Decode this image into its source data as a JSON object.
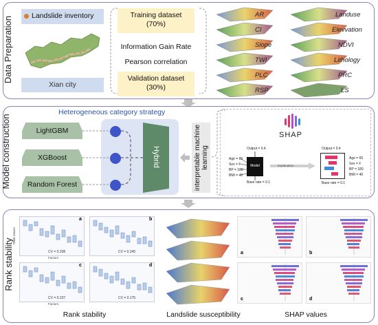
{
  "data_preparation": {
    "section_label": "Data Preparation",
    "landslide_inventory": "Landslide inventory",
    "city": "Xian city",
    "training": "Training dataset\n(70%)",
    "igr": "Information Gain Rate",
    "pearson": "Pearson correlation",
    "validation": "Validation dataset\n(30%)",
    "layers_left": [
      "AR",
      "CI",
      "Slope",
      "TWI",
      "PLC",
      "RSP"
    ],
    "layers_right": [
      "Landuse",
      "Elevvation",
      "NDVI",
      "Lithology",
      "PRC",
      "LS"
    ]
  },
  "model_construction": {
    "section_label": "Model construction",
    "strategy": "Heterogeneous category strategy",
    "models": [
      "LightGBM",
      "XGBoost",
      "Random Forest"
    ],
    "hybrid": "Hybrid",
    "iml": "interpretable machine\nlearning",
    "shap_logo": "SHAP",
    "explain_left": {
      "output": "Output = 0.4",
      "age": "Age = 65",
      "sex": "Sex = F",
      "bp": "BP = 180",
      "bmi": "BMI = 40",
      "model": "Model",
      "base": "Base rate = 0.1"
    },
    "explanation_arrow": "Explanation",
    "explain_right": {
      "output": "Output = 0.4",
      "age": "Age = 65",
      "sex": "Sex = F",
      "bp": "BP = 180",
      "bmi": "BMI = 40",
      "base": "Base rate = 0.1"
    }
  },
  "rank_stability": {
    "section_label": "Rank stability",
    "caption_rank": "Rank stability",
    "caption_landslide": "Landslide susceptibility",
    "caption_shap": "SHAP values",
    "panel_letters": [
      "a",
      "b",
      "c",
      "d"
    ],
    "cv_values": [
      "CV = 0.208",
      "CV = 0.240",
      "CV = 0.237",
      "CV = 0.175"
    ],
    "axis_x": "Factors",
    "axis_y": "Rank values"
  },
  "colors": {
    "panel_border": "#8b7fb8",
    "yellow": "#fdf1c7",
    "model_green": "#a9c2a7",
    "hybrid_green": "#5e8a6a",
    "node_blue": "#3d55c8",
    "hybrid_bg": "#dde4f4",
    "strategy_blue": "#2b55a8"
  }
}
